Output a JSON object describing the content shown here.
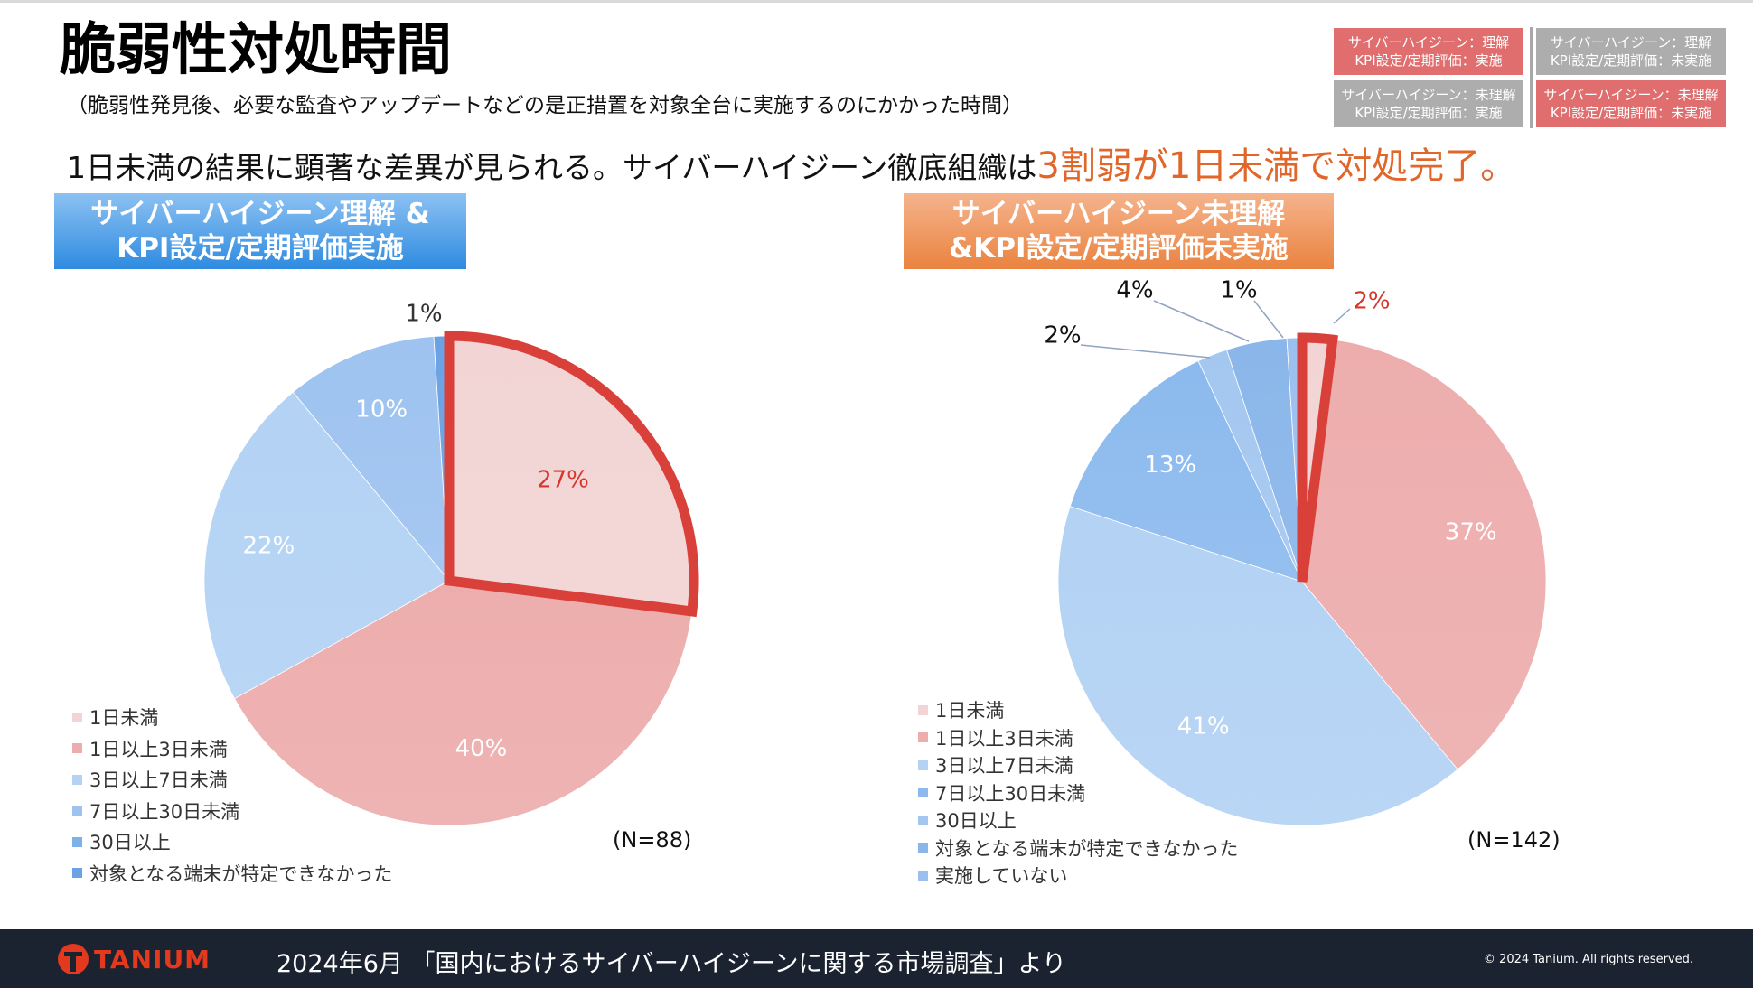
{
  "page": {
    "title": "脆弱性対処時間",
    "subtitle": "（脆弱性発見後、必要な監査やアップデートなどの是正措置を対象全台に実施するのにかかった時間）",
    "headline": {
      "text": "1日未満の結果に顕著な差異が見られる。サイバーハイジーン徹底組織は",
      "emphasis": "3割弱が1日未満で対処完了。"
    }
  },
  "key": [
    {
      "line1": "サイバーハイジーン：理解",
      "line2": "KPI設定/定期評価：実施",
      "color": "#e06e6e"
    },
    {
      "line1": "サイバーハイジーン：理解",
      "line2": "KPI設定/定期評価：未実施",
      "color": "#adadad"
    },
    {
      "line1": "サイバーハイジーン：未理解",
      "line2": "KPI設定/定期評価：実施",
      "color": "#adadad"
    },
    {
      "line1": "サイバーハイジーン：未理解",
      "line2": "KPI設定/定期評価：未実施",
      "color": "#e06e6e"
    }
  ],
  "chart_data": [
    {
      "type": "pie",
      "title_line1": "サイバーハイジーン理解 &",
      "title_line2": "KPI設定/定期評価実施",
      "n_label": "(N=88)",
      "slices": [
        {
          "label": "1日未満",
          "value": 27,
          "display": "27%",
          "color": "#f2d4d4",
          "highlight": true
        },
        {
          "label": "1日以上3日未満",
          "value": 40,
          "display": "40%",
          "color": "#edadad"
        },
        {
          "label": "3日以上7日未満",
          "value": 22,
          "display": "22%",
          "color": "#b3d2f4"
        },
        {
          "label": "7日以上30日未満",
          "value": 10,
          "display": "10%",
          "color": "#9ec3f0"
        },
        {
          "label": "30日以上",
          "value": 0,
          "display": "",
          "color": "#7eb0ea"
        },
        {
          "label": "対象となる端末が特定できなかった",
          "value": 1,
          "display": "1%",
          "color": "#6ba2e4"
        }
      ]
    },
    {
      "type": "pie",
      "title_line1": "サイバーハイジーン未理解",
      "title_line2": "&KPI設定/定期評価未実施",
      "n_label": "(N=142)",
      "slices": [
        {
          "label": "1日未満",
          "value": 2,
          "display": "2%",
          "color": "#f2d4d4",
          "highlight": true
        },
        {
          "label": "1日以上3日未満",
          "value": 37,
          "display": "37%",
          "color": "#edadad"
        },
        {
          "label": "3日以上7日未満",
          "value": 41,
          "display": "41%",
          "color": "#b3d2f4"
        },
        {
          "label": "7日以上30日未満",
          "value": 13,
          "display": "13%",
          "color": "#8cbaee"
        },
        {
          "label": "30日以上",
          "value": 2,
          "display": "2%",
          "color": "#a4c7f0"
        },
        {
          "label": "対象となる端末が特定できなかった",
          "value": 4,
          "display": "4%",
          "color": "#8ab6ea"
        },
        {
          "label": "実施していない",
          "value": 1,
          "display": "1%",
          "color": "#9bbff0"
        }
      ]
    }
  ],
  "footer": {
    "brand": "TANIUM",
    "source": "2024年6月 「国内におけるサイバーハイジーンに関する市場調査」より",
    "copyright": "© 2024 Tanium. All rights reserved."
  }
}
